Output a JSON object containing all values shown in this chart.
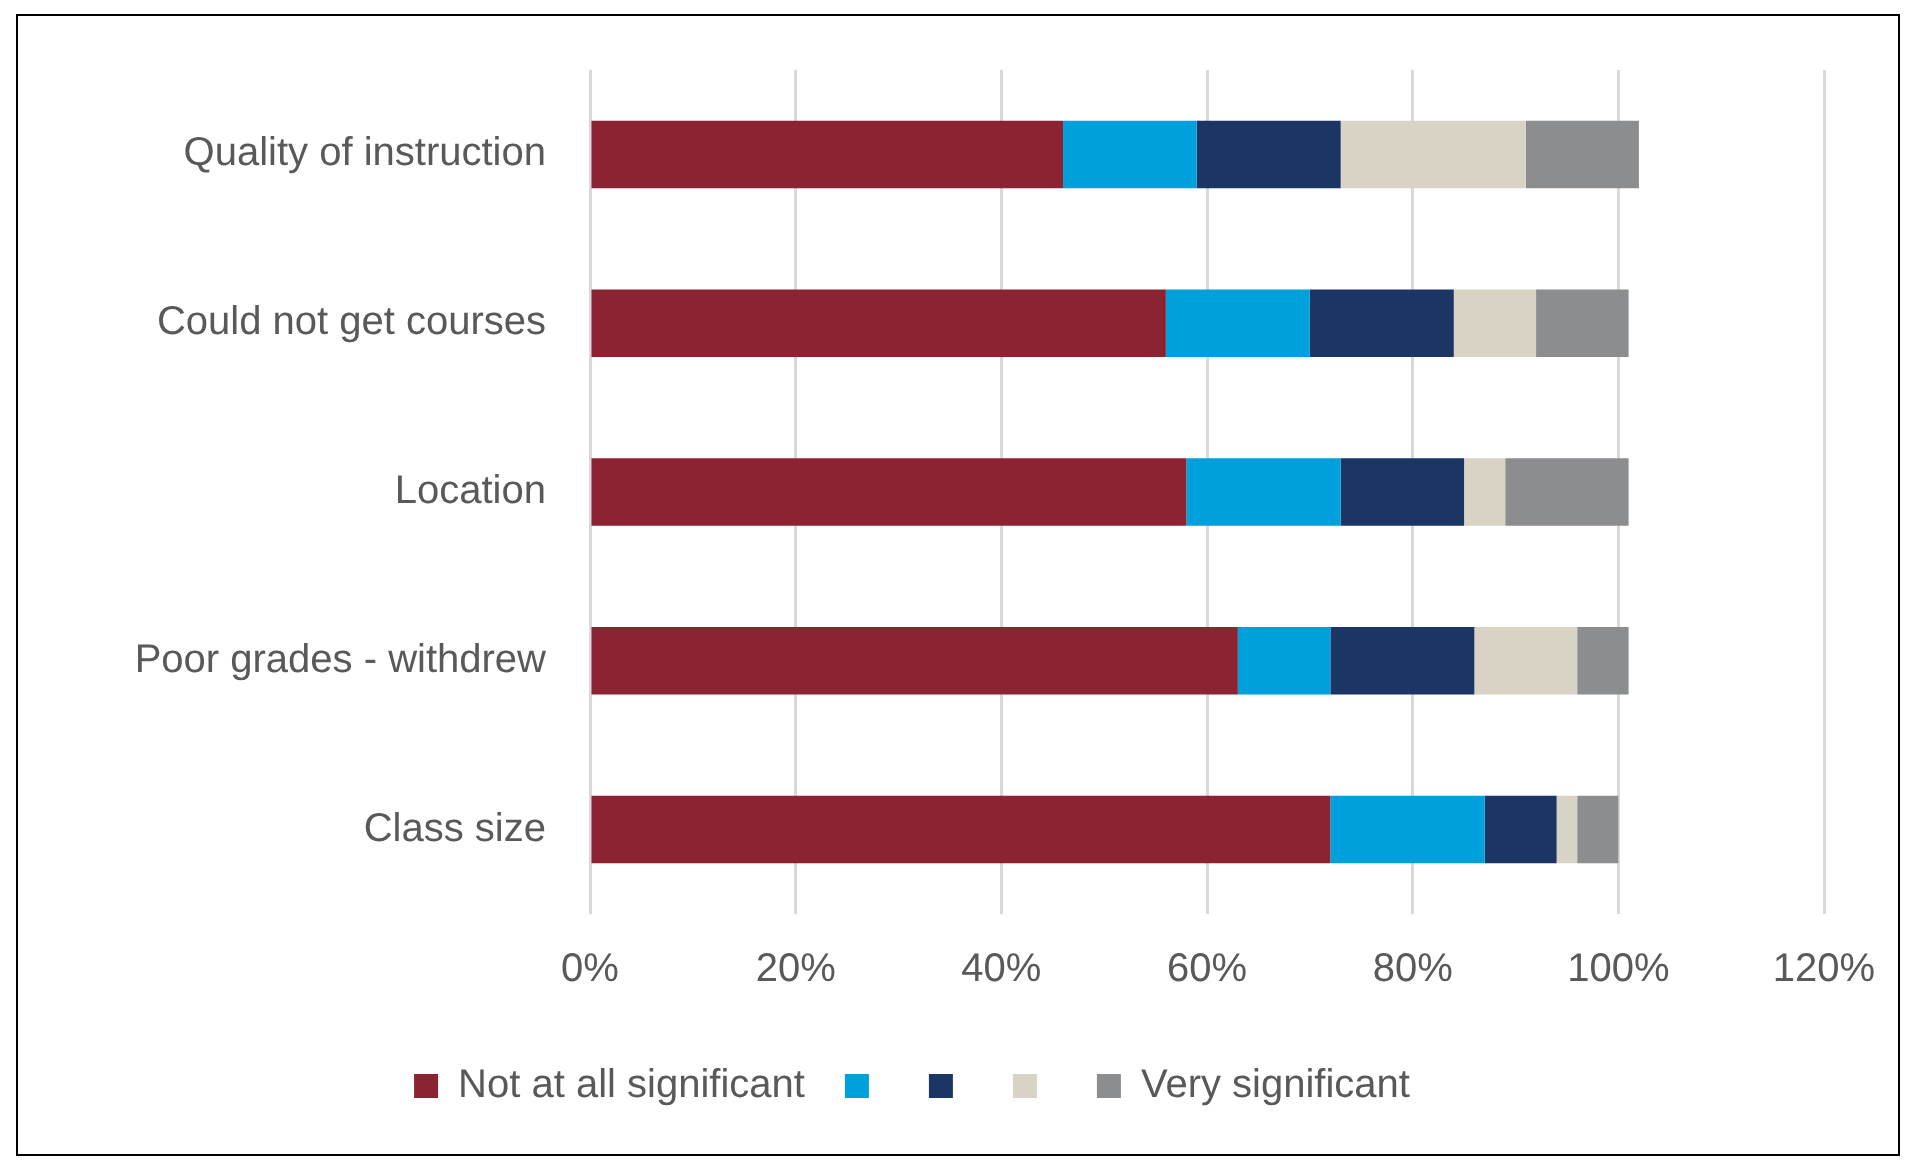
{
  "chart_data": {
    "type": "bar",
    "orientation": "horizontal",
    "stacked": true,
    "categories": [
      "Quality of instruction",
      "Could not get courses",
      "Location",
      "Poor grades - withdrew",
      "Class size"
    ],
    "series": [
      {
        "name": "Not at all significant",
        "color": "#8b2332",
        "values": [
          46,
          56,
          58,
          63,
          72
        ]
      },
      {
        "color": "#00a0dc",
        "values": [
          13,
          14,
          15,
          9,
          15
        ]
      },
      {
        "color": "#1b3564",
        "values": [
          14,
          14,
          12,
          14,
          7
        ]
      },
      {
        "color": "#d9d3c5",
        "values": [
          18,
          8,
          4,
          10,
          2
        ]
      },
      {
        "name": "Very significant",
        "color": "#8c8d8f",
        "values": [
          11,
          9,
          12,
          5,
          4
        ]
      }
    ],
    "xlim": [
      0,
      120
    ],
    "xticks": [
      {
        "value": 0,
        "label": "0%"
      },
      {
        "value": 20,
        "label": "20%"
      },
      {
        "value": 40,
        "label": "40%"
      },
      {
        "value": 60,
        "label": "60%"
      },
      {
        "value": 80,
        "label": "80%"
      },
      {
        "value": 100,
        "label": "100%"
      },
      {
        "value": 120,
        "label": "120%"
      }
    ],
    "grid": "x",
    "legend": "bottom"
  }
}
